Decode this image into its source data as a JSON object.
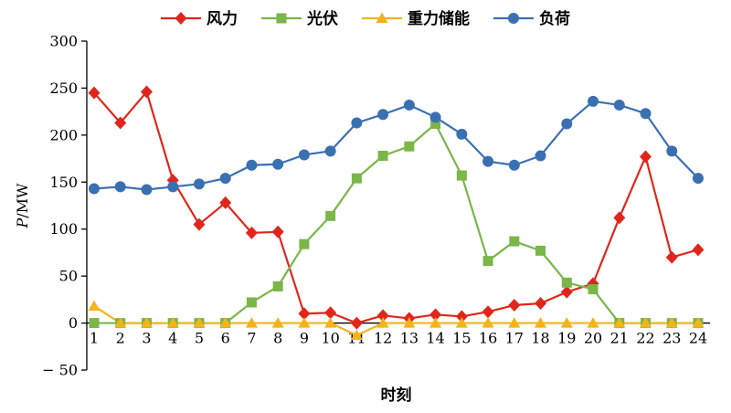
{
  "chart_data": {
    "type": "line",
    "x": [
      1,
      2,
      3,
      4,
      5,
      6,
      7,
      8,
      9,
      10,
      11,
      12,
      13,
      14,
      15,
      16,
      17,
      18,
      19,
      20,
      21,
      22,
      23,
      24
    ],
    "series": [
      {
        "key": "wind",
        "name": "风力",
        "color": "#e0261c",
        "marker": "diamond",
        "values": [
          245,
          213,
          246,
          152,
          105,
          128,
          96,
          97,
          10,
          11,
          0,
          8,
          5,
          9,
          7,
          12,
          19,
          21,
          33,
          42,
          112,
          177,
          70,
          78
        ]
      },
      {
        "key": "pv",
        "name": "光伏",
        "color": "#7AB648",
        "marker": "square",
        "values": [
          0,
          0,
          0,
          0,
          0,
          0,
          22,
          39,
          84,
          114,
          154,
          178,
          188,
          212,
          157,
          66,
          87,
          77,
          43,
          36,
          0,
          0,
          0,
          0
        ]
      },
      {
        "key": "gravity-storage",
        "name": "重力储能",
        "color": "#F4B31B",
        "marker": "triangle",
        "values": [
          18,
          0,
          0,
          0,
          0,
          0,
          0,
          0,
          0,
          0,
          -13,
          0,
          0,
          0,
          0,
          0,
          0,
          0,
          0,
          0,
          0,
          0,
          0,
          0
        ]
      },
      {
        "key": "load",
        "name": "负荷",
        "color": "#3A70B2",
        "marker": "circle",
        "values": [
          143,
          145,
          142,
          145,
          148,
          154,
          168,
          169,
          179,
          183,
          213,
          222,
          232,
          219,
          201,
          172,
          168,
          178,
          212,
          236,
          232,
          223,
          183,
          154
        ]
      }
    ],
    "title": "",
    "xlabel": "时刻",
    "ylabel": "P/MW",
    "ylim": [
      -50,
      300
    ],
    "yticks": [
      -50,
      0,
      50,
      100,
      150,
      200,
      250,
      300
    ],
    "legend_position": "top",
    "grid": false,
    "background": "#ffffff"
  }
}
